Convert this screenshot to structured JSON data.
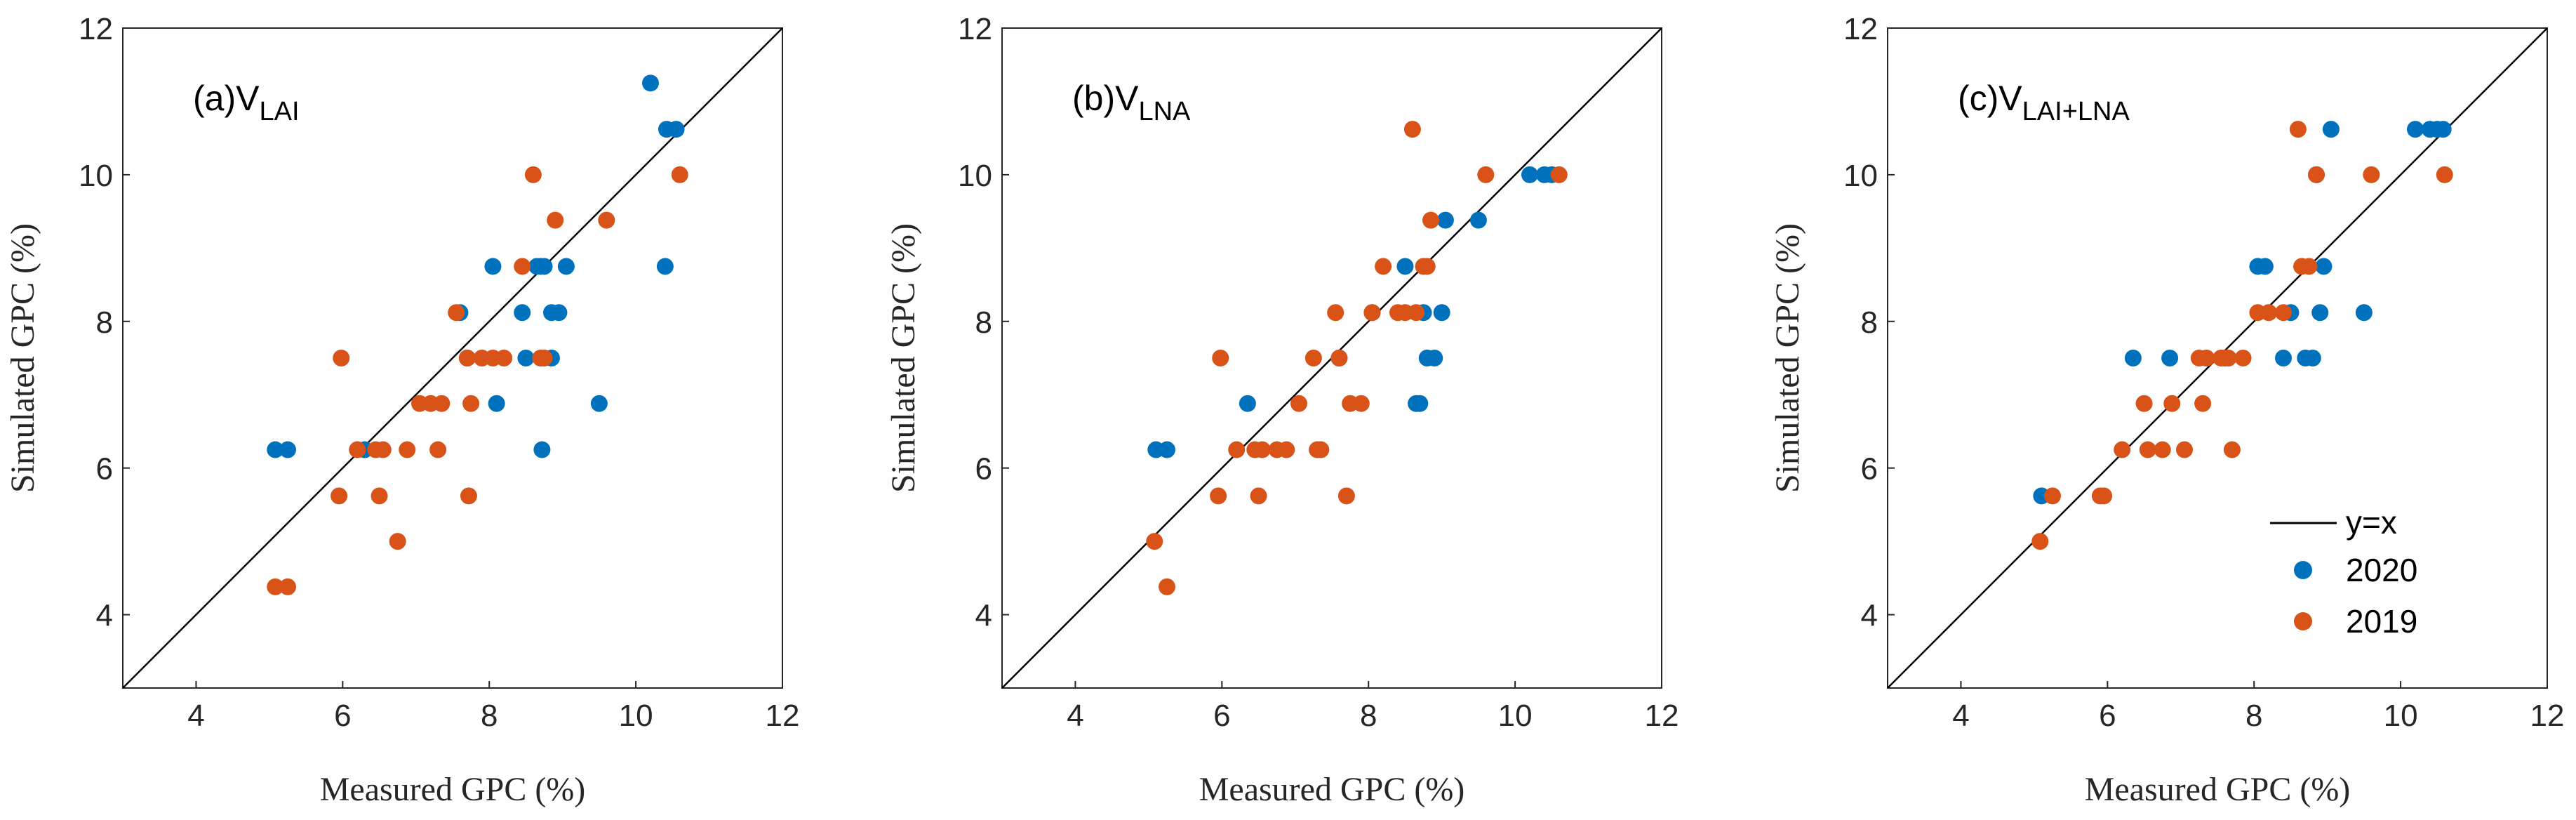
{
  "chart_data": [
    {
      "type": "scatter",
      "title": "(a)V",
      "title_subscript": "LAI",
      "xlabel": "Measured GPC (%)",
      "ylabel": "Simulated GPC (%)",
      "xlim": [
        3,
        12
      ],
      "ylim": [
        3,
        12
      ],
      "xticks": [
        "4",
        "6",
        "8",
        "10",
        "12"
      ],
      "yticks": [
        "4",
        "6",
        "8",
        "10",
        "12"
      ],
      "reference_line": "y=x",
      "series": [
        {
          "name": "2020",
          "color": "#0072BD",
          "x": [
            5.08,
            5.25,
            6.3,
            7.6,
            7.7,
            8.05,
            8.1,
            8.45,
            8.5,
            8.65,
            8.7,
            8.72,
            8.75,
            8.85,
            8.85,
            8.95,
            9.05,
            9.5,
            10.2,
            10.4,
            10.42,
            10.55
          ],
          "y": [
            6.25,
            6.25,
            6.25,
            8.12,
            7.5,
            8.75,
            6.88,
            8.12,
            7.5,
            8.75,
            8.75,
            6.25,
            8.75,
            7.5,
            8.12,
            8.12,
            8.75,
            6.88,
            11.25,
            8.75,
            10.62,
            10.62
          ]
        },
        {
          "name": "2019",
          "color": "#D95319",
          "x": [
            5.08,
            5.25,
            5.95,
            5.98,
            6.2,
            6.45,
            6.5,
            6.55,
            6.75,
            6.88,
            7.05,
            7.2,
            7.3,
            7.35,
            7.55,
            7.7,
            7.72,
            7.75,
            7.9,
            8.05,
            8.2,
            8.45,
            8.6,
            8.7,
            8.75,
            8.9,
            9.6,
            10.6
          ],
          "y": [
            4.38,
            4.38,
            5.62,
            7.5,
            6.25,
            6.25,
            5.62,
            6.25,
            5.0,
            6.25,
            6.88,
            6.88,
            6.25,
            6.88,
            8.12,
            7.5,
            5.62,
            6.88,
            7.5,
            7.5,
            7.5,
            8.75,
            10.0,
            7.5,
            7.5,
            9.38,
            9.38,
            10.0
          ]
        }
      ]
    },
    {
      "type": "scatter",
      "title": "(b)V",
      "title_subscript": "LNA",
      "xlabel": "Measured GPC (%)",
      "ylabel": "Simulated GPC (%)",
      "xlim": [
        3,
        12
      ],
      "ylim": [
        3,
        12
      ],
      "xticks": [
        "4",
        "6",
        "8",
        "10",
        "12"
      ],
      "yticks": [
        "4",
        "6",
        "8",
        "10",
        "12"
      ],
      "reference_line": "y=x",
      "series": [
        {
          "name": "2020",
          "color": "#0072BD",
          "x": [
            5.1,
            5.25,
            6.35,
            7.6,
            8.05,
            8.5,
            8.65,
            8.7,
            8.75,
            8.8,
            8.9,
            9.0,
            9.05,
            9.5,
            10.2,
            10.4,
            10.5
          ],
          "y": [
            6.25,
            6.25,
            6.88,
            7.5,
            8.12,
            8.75,
            6.88,
            6.88,
            8.12,
            7.5,
            7.5,
            8.12,
            9.38,
            9.38,
            10.0,
            10.0,
            10.0
          ]
        },
        {
          "name": "2019",
          "color": "#D95319",
          "x": [
            5.08,
            5.25,
            5.95,
            5.98,
            6.2,
            6.45,
            6.5,
            6.55,
            6.75,
            6.88,
            7.05,
            7.25,
            7.3,
            7.35,
            7.55,
            7.6,
            7.7,
            7.75,
            7.9,
            8.05,
            8.2,
            8.4,
            8.5,
            8.6,
            8.65,
            8.75,
            8.8,
            8.85,
            9.6,
            10.6
          ],
          "y": [
            5.0,
            4.38,
            5.62,
            7.5,
            6.25,
            6.25,
            5.62,
            6.25,
            6.25,
            6.25,
            6.88,
            7.5,
            6.25,
            6.25,
            8.12,
            7.5,
            5.62,
            6.88,
            6.88,
            8.12,
            8.75,
            8.12,
            8.12,
            10.62,
            8.12,
            8.75,
            8.75,
            9.38,
            10.0,
            10.0
          ]
        }
      ]
    },
    {
      "type": "scatter",
      "title": "(c)V",
      "title_subscript": "LAI+LNA",
      "xlabel": "Measured GPC (%)",
      "ylabel": "Simulated GPC (%)",
      "xlim": [
        3,
        12
      ],
      "ylim": [
        3,
        12
      ],
      "xticks": [
        "4",
        "6",
        "8",
        "10",
        "12"
      ],
      "yticks": [
        "4",
        "6",
        "8",
        "10",
        "12"
      ],
      "reference_line": "y=x",
      "legend": {
        "position": "bottom-right",
        "line_label": "y=x",
        "entries": [
          "2020",
          "2019"
        ]
      },
      "series": [
        {
          "name": "2020",
          "color": "#0072BD",
          "x": [
            5.1,
            6.35,
            6.85,
            8.05,
            8.15,
            8.4,
            8.5,
            8.7,
            8.8,
            8.85,
            8.9,
            8.95,
            9.05,
            9.5,
            10.2,
            10.4,
            10.5,
            10.58
          ],
          "y": [
            5.62,
            7.5,
            7.5,
            8.75,
            8.75,
            7.5,
            8.12,
            7.5,
            7.5,
            10.0,
            8.12,
            8.75,
            10.62,
            8.12,
            10.62,
            10.62,
            10.62,
            10.62
          ]
        },
        {
          "name": "2019",
          "color": "#D95319",
          "x": [
            5.08,
            5.25,
            5.9,
            5.95,
            6.2,
            6.5,
            6.55,
            6.75,
            6.88,
            7.05,
            7.25,
            7.3,
            7.35,
            7.55,
            7.6,
            7.65,
            7.7,
            7.85,
            8.05,
            8.2,
            8.4,
            8.6,
            8.65,
            8.75,
            8.85,
            9.6,
            10.6
          ],
          "y": [
            5.0,
            5.62,
            5.62,
            5.62,
            6.25,
            6.88,
            6.25,
            6.25,
            6.88,
            6.25,
            7.5,
            6.88,
            7.5,
            7.5,
            7.5,
            7.5,
            6.25,
            7.5,
            8.12,
            8.12,
            8.12,
            10.62,
            8.75,
            8.75,
            10.0,
            10.0,
            10.0
          ]
        }
      ]
    }
  ]
}
